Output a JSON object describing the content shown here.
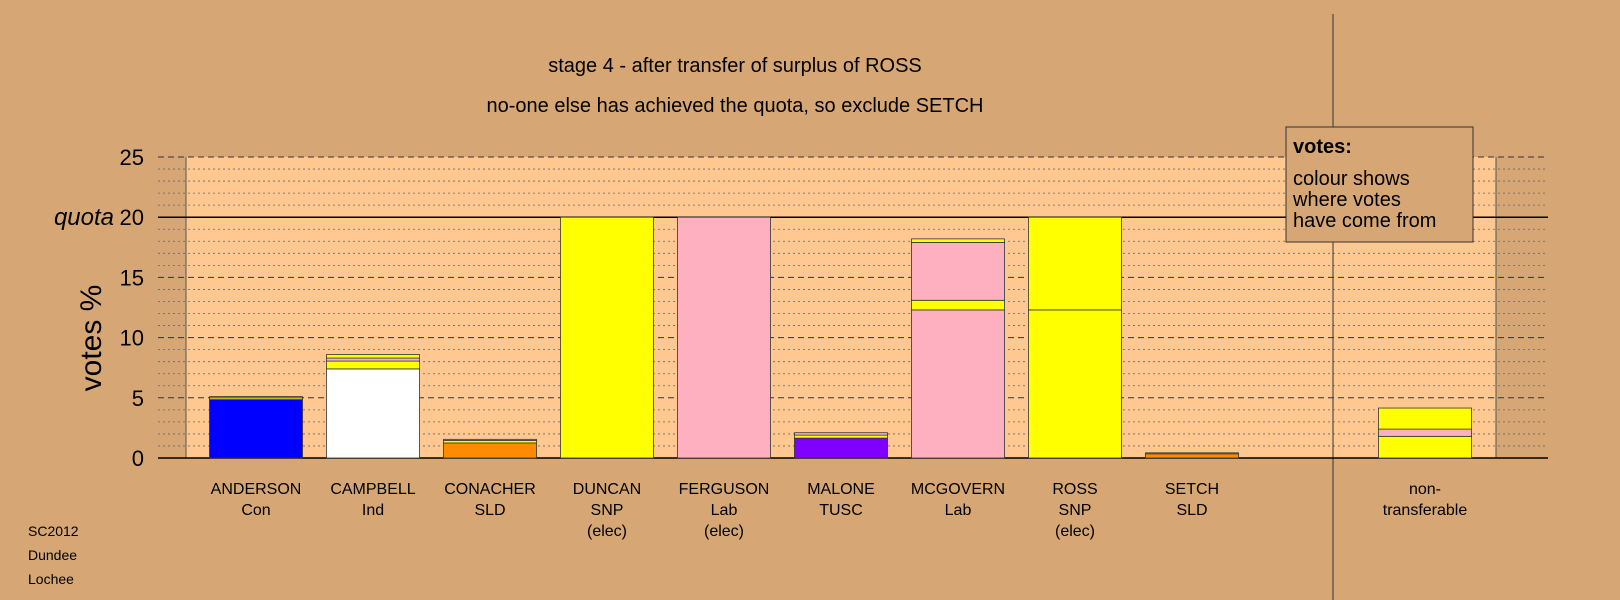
{
  "chart_data": {
    "type": "bar",
    "stacked": true,
    "title": "stage 4 - after transfer of surplus of ROSS",
    "subtitle": "no-one else has achieved the quota, so exclude SETCH",
    "ylabel": "votes %",
    "ylim": [
      0,
      25
    ],
    "yticks": [
      "0",
      "5",
      "10",
      "15",
      "20",
      "25"
    ],
    "quota": {
      "value": 20,
      "label": "quota"
    },
    "grid": true,
    "legend": {
      "title": "votes:",
      "lines": [
        "colour shows",
        "where votes",
        "have come from"
      ],
      "placement": "top-right"
    },
    "colors": {
      "Con": "#0000ff",
      "Ind": "#ffffff",
      "SLD": "#ff8c00",
      "SNP": "#ffff00",
      "Lab": "#ffb0c0",
      "TUSC": "#8000ff",
      "plot_band": "#ffc890",
      "background": "#d6a774"
    },
    "categories": [
      {
        "name": "ANDERSON",
        "party": "Con",
        "note": "",
        "segments": [
          {
            "from": "Con",
            "value": 4.85
          },
          {
            "from": "SNP",
            "value": 0.15
          },
          {
            "from": "Lab",
            "value": 0.1
          }
        ]
      },
      {
        "name": "CAMPBELL",
        "party": "Ind",
        "note": "",
        "segments": [
          {
            "from": "Ind",
            "value": 7.4
          },
          {
            "from": "SNP",
            "value": 0.65
          },
          {
            "from": "Lab",
            "value": 0.25
          },
          {
            "from": "SNP",
            "value": 0.3
          }
        ]
      },
      {
        "name": "CONACHER",
        "party": "SLD",
        "note": "",
        "segments": [
          {
            "from": "SLD",
            "value": 1.25
          },
          {
            "from": "SNP",
            "value": 0.2
          },
          {
            "from": "Lab",
            "value": 0.1
          }
        ]
      },
      {
        "name": "DUNCAN",
        "party": "SNP",
        "note": "(elec)",
        "segments": [
          {
            "from": "SNP",
            "value": 20
          }
        ]
      },
      {
        "name": "FERGUSON",
        "party": "Lab",
        "note": "(elec)",
        "segments": [
          {
            "from": "Lab",
            "value": 20
          }
        ]
      },
      {
        "name": "MALONE",
        "party": "TUSC",
        "note": "",
        "segments": [
          {
            "from": "TUSC",
            "value": 1.65
          },
          {
            "from": "SNP",
            "value": 0.25
          },
          {
            "from": "Lab",
            "value": 0.2
          }
        ]
      },
      {
        "name": "MCGOVERN",
        "party": "Lab",
        "note": "",
        "segments": [
          {
            "from": "Lab",
            "value": 12.3
          },
          {
            "from": "SNP",
            "value": 0.8
          },
          {
            "from": "Lab",
            "value": 4.8
          },
          {
            "from": "SNP",
            "value": 0.3
          }
        ]
      },
      {
        "name": "ROSS",
        "party": "SNP",
        "note": "(elec)",
        "segments": [
          {
            "from": "SNP",
            "value": 12.3
          },
          {
            "from": "SNP",
            "value": 7.7
          }
        ]
      },
      {
        "name": "SETCH",
        "party": "SLD",
        "note": "",
        "segments": [
          {
            "from": "SLD",
            "value": 0.35
          },
          {
            "from": "SNP",
            "value": 0.08
          }
        ]
      },
      {
        "name": "non-",
        "party": "transferable",
        "note": "",
        "separated": true,
        "segments": [
          {
            "from": "SNP",
            "value": 1.8
          },
          {
            "from": "Lab",
            "value": 0.6
          },
          {
            "from": "SNP",
            "value": 1.75
          }
        ]
      }
    ]
  },
  "footer": {
    "lines": [
      "SC2012",
      "Dundee",
      "Lochee"
    ]
  }
}
